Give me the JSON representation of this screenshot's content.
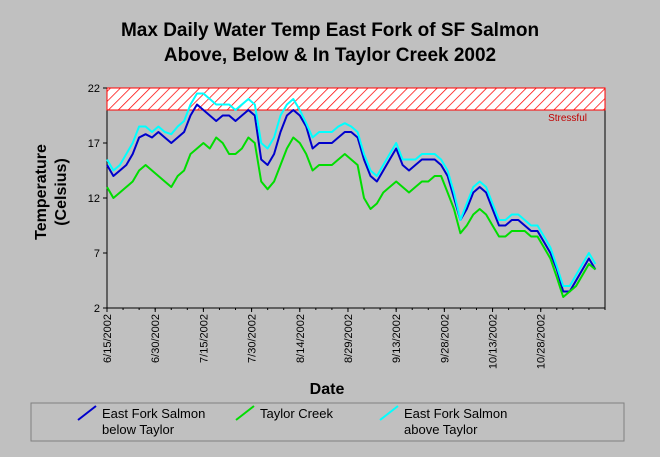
{
  "chart_data": {
    "type": "line",
    "title_line1": "Max Daily Water Temp East Fork of SF Salmon",
    "title_line2": "Above, Below & In Taylor Creek 2002",
    "xlabel": "Date",
    "ylabel_line1": "Temperature",
    "ylabel_line2": "(Celsius)",
    "xlim": [
      "2002-06-15",
      "2002-11-17"
    ],
    "ylim": [
      2,
      22
    ],
    "yticks": [
      "2",
      "7",
      "12",
      "17",
      "22"
    ],
    "yvalues": [
      2,
      7,
      12,
      17,
      22
    ],
    "xtick_labels": [
      "6/15/2002",
      "6/30/2002",
      "7/15/2002",
      "7/30/2002",
      "8/14/2002",
      "8/29/2002",
      "9/13/2002",
      "9/28/2002",
      "10/13/2002",
      "10/28/2002"
    ],
    "xtick_dates": [
      "2002-06-15",
      "2002-06-30",
      "2002-07-15",
      "2002-07-30",
      "2002-08-14",
      "2002-08-29",
      "2002-09-13",
      "2002-09-28",
      "2002-10-13",
      "2002-10-28"
    ],
    "stressful_band": {
      "label": "Stressful",
      "from": 20,
      "to": 22,
      "color": "#ff0000"
    },
    "grid": false,
    "legend_position": "bottom",
    "series": [
      {
        "name": "East Fork Salmon below Taylor",
        "color": "#0000cc",
        "x": [
          "2002-06-15",
          "2002-06-17",
          "2002-06-19",
          "2002-06-21",
          "2002-06-23",
          "2002-06-25",
          "2002-06-27",
          "2002-06-29",
          "2002-07-01",
          "2002-07-03",
          "2002-07-05",
          "2002-07-07",
          "2002-07-09",
          "2002-07-11",
          "2002-07-13",
          "2002-07-15",
          "2002-07-17",
          "2002-07-19",
          "2002-07-21",
          "2002-07-23",
          "2002-07-25",
          "2002-07-27",
          "2002-07-29",
          "2002-07-31",
          "2002-08-02",
          "2002-08-04",
          "2002-08-06",
          "2002-08-08",
          "2002-08-10",
          "2002-08-12",
          "2002-08-14",
          "2002-08-16",
          "2002-08-18",
          "2002-08-20",
          "2002-08-22",
          "2002-08-24",
          "2002-08-26",
          "2002-08-28",
          "2002-08-30",
          "2002-09-01",
          "2002-09-03",
          "2002-09-05",
          "2002-09-07",
          "2002-09-09",
          "2002-09-11",
          "2002-09-13",
          "2002-09-15",
          "2002-09-17",
          "2002-09-19",
          "2002-09-21",
          "2002-09-23",
          "2002-09-25",
          "2002-09-27",
          "2002-09-29",
          "2002-10-01",
          "2002-10-03",
          "2002-10-05",
          "2002-10-07",
          "2002-10-09",
          "2002-10-11",
          "2002-10-13",
          "2002-10-15",
          "2002-10-17",
          "2002-10-19",
          "2002-10-21",
          "2002-10-23",
          "2002-10-25",
          "2002-10-27",
          "2002-10-29",
          "2002-10-31",
          "2002-11-02",
          "2002-11-04",
          "2002-11-06",
          "2002-11-08",
          "2002-11-10",
          "2002-11-12",
          "2002-11-14"
        ],
        "y": [
          15.0,
          14.0,
          14.5,
          15.0,
          16.0,
          17.5,
          17.8,
          17.5,
          18.0,
          17.5,
          17.0,
          17.5,
          18.0,
          19.5,
          20.5,
          20.0,
          19.5,
          19.0,
          19.5,
          19.5,
          19.0,
          19.5,
          20.0,
          19.5,
          15.5,
          15.0,
          16.0,
          18.0,
          19.5,
          20.0,
          19.5,
          18.5,
          16.5,
          17.0,
          17.0,
          17.0,
          17.5,
          18.0,
          18.0,
          17.5,
          15.5,
          14.0,
          13.5,
          14.5,
          15.5,
          16.5,
          15.0,
          14.5,
          15.0,
          15.5,
          15.5,
          15.5,
          15.0,
          14.0,
          12.0,
          10.0,
          11.0,
          12.5,
          13.0,
          12.5,
          11.0,
          9.5,
          9.5,
          10.0,
          10.0,
          9.5,
          9.0,
          9.0,
          8.0,
          7.0,
          5.5,
          3.5,
          3.5,
          4.5,
          5.5,
          6.5,
          5.5
        ]
      },
      {
        "name": "Taylor Creek",
        "color": "#00dd00",
        "x": [
          "2002-06-15",
          "2002-06-17",
          "2002-06-19",
          "2002-06-21",
          "2002-06-23",
          "2002-06-25",
          "2002-06-27",
          "2002-06-29",
          "2002-07-01",
          "2002-07-03",
          "2002-07-05",
          "2002-07-07",
          "2002-07-09",
          "2002-07-11",
          "2002-07-13",
          "2002-07-15",
          "2002-07-17",
          "2002-07-19",
          "2002-07-21",
          "2002-07-23",
          "2002-07-25",
          "2002-07-27",
          "2002-07-29",
          "2002-07-31",
          "2002-08-02",
          "2002-08-04",
          "2002-08-06",
          "2002-08-08",
          "2002-08-10",
          "2002-08-12",
          "2002-08-14",
          "2002-08-16",
          "2002-08-18",
          "2002-08-20",
          "2002-08-22",
          "2002-08-24",
          "2002-08-26",
          "2002-08-28",
          "2002-08-30",
          "2002-09-01",
          "2002-09-03",
          "2002-09-05",
          "2002-09-07",
          "2002-09-09",
          "2002-09-11",
          "2002-09-13",
          "2002-09-15",
          "2002-09-17",
          "2002-09-19",
          "2002-09-21",
          "2002-09-23",
          "2002-09-25",
          "2002-09-27",
          "2002-09-29",
          "2002-10-01",
          "2002-10-03",
          "2002-10-05",
          "2002-10-07",
          "2002-10-09",
          "2002-10-11",
          "2002-10-13",
          "2002-10-15",
          "2002-10-17",
          "2002-10-19",
          "2002-10-21",
          "2002-10-23",
          "2002-10-25",
          "2002-10-27",
          "2002-10-29",
          "2002-10-31",
          "2002-11-02",
          "2002-11-04",
          "2002-11-06",
          "2002-11-08",
          "2002-11-10",
          "2002-11-12",
          "2002-11-14"
        ],
        "y": [
          13.0,
          12.0,
          12.5,
          13.0,
          13.5,
          14.5,
          15.0,
          14.5,
          14.0,
          13.5,
          13.0,
          14.0,
          14.5,
          16.0,
          16.5,
          17.0,
          16.5,
          17.5,
          17.0,
          16.0,
          16.0,
          16.5,
          17.5,
          17.0,
          13.5,
          12.8,
          13.5,
          15.0,
          16.5,
          17.5,
          17.0,
          16.0,
          14.5,
          15.0,
          15.0,
          15.0,
          15.5,
          16.0,
          15.5,
          15.0,
          12.0,
          11.0,
          11.5,
          12.5,
          13.0,
          13.5,
          13.0,
          12.5,
          13.0,
          13.5,
          13.5,
          14.0,
          14.0,
          12.5,
          11.0,
          8.8,
          9.5,
          10.5,
          11.0,
          10.5,
          9.5,
          8.5,
          8.5,
          9.0,
          9.0,
          9.0,
          8.5,
          8.5,
          7.5,
          6.5,
          4.8,
          3.0,
          3.5,
          4.0,
          5.0,
          6.0,
          5.5
        ]
      },
      {
        "name": "East Fork Salmon above Taylor",
        "color": "#00ffff",
        "x": [
          "2002-06-15",
          "2002-06-17",
          "2002-06-19",
          "2002-06-21",
          "2002-06-23",
          "2002-06-25",
          "2002-06-27",
          "2002-06-29",
          "2002-07-01",
          "2002-07-03",
          "2002-07-05",
          "2002-07-07",
          "2002-07-09",
          "2002-07-11",
          "2002-07-13",
          "2002-07-15",
          "2002-07-17",
          "2002-07-19",
          "2002-07-21",
          "2002-07-23",
          "2002-07-25",
          "2002-07-27",
          "2002-07-29",
          "2002-07-31",
          "2002-08-02",
          "2002-08-04",
          "2002-08-06",
          "2002-08-08",
          "2002-08-10",
          "2002-08-12",
          "2002-08-14",
          "2002-08-16",
          "2002-08-18",
          "2002-08-20",
          "2002-08-22",
          "2002-08-24",
          "2002-08-26",
          "2002-08-28",
          "2002-08-30",
          "2002-09-01",
          "2002-09-03",
          "2002-09-05",
          "2002-09-07",
          "2002-09-09",
          "2002-09-11",
          "2002-09-13",
          "2002-09-15",
          "2002-09-17",
          "2002-09-19",
          "2002-09-21",
          "2002-09-23",
          "2002-09-25",
          "2002-09-27",
          "2002-09-29",
          "2002-10-01",
          "2002-10-03",
          "2002-10-05",
          "2002-10-07",
          "2002-10-09",
          "2002-10-11",
          "2002-10-13",
          "2002-10-15",
          "2002-10-17",
          "2002-10-19",
          "2002-10-21",
          "2002-10-23",
          "2002-10-25",
          "2002-10-27",
          "2002-10-29",
          "2002-10-31",
          "2002-11-02",
          "2002-11-04",
          "2002-11-06",
          "2002-11-08",
          "2002-11-10",
          "2002-11-12",
          "2002-11-14"
        ],
        "y": [
          15.5,
          14.5,
          15.0,
          16.0,
          17.0,
          18.5,
          18.5,
          18.0,
          18.5,
          18.0,
          17.8,
          18.5,
          19.0,
          20.5,
          21.5,
          21.5,
          21.0,
          20.5,
          20.5,
          20.5,
          20.0,
          20.5,
          21.0,
          20.5,
          17.0,
          16.5,
          17.5,
          19.5,
          20.5,
          21.0,
          20.0,
          18.8,
          17.5,
          18.0,
          18.0,
          18.0,
          18.5,
          18.8,
          18.5,
          18.0,
          16.0,
          14.5,
          14.0,
          15.0,
          16.0,
          17.0,
          15.5,
          15.5,
          15.5,
          16.0,
          16.0,
          16.0,
          15.5,
          14.5,
          12.5,
          10.0,
          11.5,
          13.0,
          13.5,
          13.0,
          11.5,
          10.0,
          10.0,
          10.5,
          10.5,
          10.0,
          9.5,
          9.5,
          8.5,
          7.5,
          5.8,
          4.0,
          4.0,
          5.0,
          6.0,
          7.0,
          6.0
        ]
      }
    ]
  }
}
